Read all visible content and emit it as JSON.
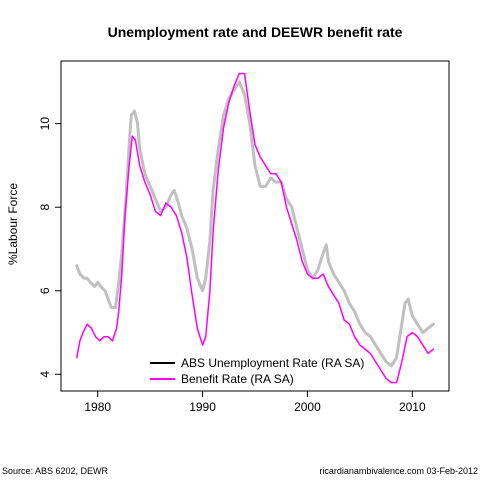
{
  "chart_data": {
    "type": "line",
    "title": "Unemployment rate and DEEWR benefit rate",
    "xlabel": "",
    "ylabel": "%Labour Force",
    "xlim": [
      1976.5,
      2013.5
    ],
    "ylim": [
      3.6,
      11.5
    ],
    "x_ticks": [
      1980,
      1990,
      2000,
      2010
    ],
    "y_ticks": [
      4,
      6,
      8,
      10
    ],
    "x_tick_labels": [
      "1980",
      "1990",
      "2000",
      "2010"
    ],
    "y_tick_labels": [
      "4",
      "6",
      "8",
      "10"
    ],
    "grid": false,
    "legend_position": "bottom-center",
    "series": [
      {
        "name": "ABS Unemployment Rate (RA SA)",
        "legend_color": "#000000",
        "color": "#c0c0c0",
        "points": [
          [
            1978.0,
            6.6
          ],
          [
            1978.3,
            6.4
          ],
          [
            1978.7,
            6.3
          ],
          [
            1979.0,
            6.3
          ],
          [
            1979.3,
            6.2
          ],
          [
            1979.7,
            6.1
          ],
          [
            1980.0,
            6.2
          ],
          [
            1980.3,
            6.1
          ],
          [
            1980.7,
            6.0
          ],
          [
            1981.0,
            5.8
          ],
          [
            1981.3,
            5.6
          ],
          [
            1981.7,
            5.6
          ],
          [
            1982.0,
            6.2
          ],
          [
            1982.3,
            6.9
          ],
          [
            1982.7,
            8.2
          ],
          [
            1983.0,
            9.5
          ],
          [
            1983.2,
            10.2
          ],
          [
            1983.5,
            10.3
          ],
          [
            1983.8,
            10.0
          ],
          [
            1984.0,
            9.4
          ],
          [
            1984.5,
            8.8
          ],
          [
            1985.0,
            8.5
          ],
          [
            1985.5,
            8.2
          ],
          [
            1986.0,
            7.9
          ],
          [
            1986.5,
            8.0
          ],
          [
            1987.0,
            8.3
          ],
          [
            1987.3,
            8.4
          ],
          [
            1987.7,
            8.1
          ],
          [
            1988.0,
            7.8
          ],
          [
            1988.5,
            7.5
          ],
          [
            1989.0,
            7.0
          ],
          [
            1989.5,
            6.3
          ],
          [
            1990.0,
            6.0
          ],
          [
            1990.3,
            6.3
          ],
          [
            1990.7,
            7.2
          ],
          [
            1991.0,
            8.4
          ],
          [
            1991.5,
            9.4
          ],
          [
            1992.0,
            10.2
          ],
          [
            1992.5,
            10.6
          ],
          [
            1993.0,
            10.8
          ],
          [
            1993.5,
            11.0
          ],
          [
            1994.0,
            10.7
          ],
          [
            1994.5,
            10.0
          ],
          [
            1995.0,
            9.0
          ],
          [
            1995.5,
            8.5
          ],
          [
            1996.0,
            8.5
          ],
          [
            1996.5,
            8.7
          ],
          [
            1997.0,
            8.6
          ],
          [
            1997.5,
            8.6
          ],
          [
            1998.0,
            8.2
          ],
          [
            1998.5,
            8.0
          ],
          [
            1999.0,
            7.5
          ],
          [
            1999.5,
            7.0
          ],
          [
            2000.0,
            6.5
          ],
          [
            2000.5,
            6.3
          ],
          [
            2001.0,
            6.5
          ],
          [
            2001.5,
            6.9
          ],
          [
            2001.8,
            7.1
          ],
          [
            2002.0,
            6.7
          ],
          [
            2002.5,
            6.4
          ],
          [
            2003.0,
            6.2
          ],
          [
            2003.5,
            6.0
          ],
          [
            2004.0,
            5.7
          ],
          [
            2004.5,
            5.5
          ],
          [
            2005.0,
            5.2
          ],
          [
            2005.5,
            5.0
          ],
          [
            2006.0,
            4.9
          ],
          [
            2006.5,
            4.7
          ],
          [
            2007.0,
            4.5
          ],
          [
            2007.5,
            4.3
          ],
          [
            2008.0,
            4.2
          ],
          [
            2008.5,
            4.4
          ],
          [
            2009.0,
            5.2
          ],
          [
            2009.3,
            5.7
          ],
          [
            2009.6,
            5.8
          ],
          [
            2010.0,
            5.4
          ],
          [
            2010.5,
            5.2
          ],
          [
            2011.0,
            5.0
          ],
          [
            2011.5,
            5.1
          ],
          [
            2012.0,
            5.2
          ]
        ]
      },
      {
        "name": "Benefit Rate (RA SA)",
        "legend_color": "#ff00ff",
        "color": "#ff00ff",
        "points": [
          [
            1978.0,
            4.4
          ],
          [
            1978.3,
            4.8
          ],
          [
            1978.6,
            5.0
          ],
          [
            1979.0,
            5.2
          ],
          [
            1979.4,
            5.1
          ],
          [
            1979.8,
            4.9
          ],
          [
            1980.2,
            4.8
          ],
          [
            1980.6,
            4.9
          ],
          [
            1981.0,
            4.9
          ],
          [
            1981.4,
            4.8
          ],
          [
            1981.8,
            5.1
          ],
          [
            1982.0,
            5.5
          ],
          [
            1982.3,
            6.4
          ],
          [
            1982.6,
            7.8
          ],
          [
            1983.0,
            9.0
          ],
          [
            1983.3,
            9.7
          ],
          [
            1983.6,
            9.6
          ],
          [
            1984.0,
            9.0
          ],
          [
            1984.5,
            8.6
          ],
          [
            1985.0,
            8.3
          ],
          [
            1985.5,
            7.9
          ],
          [
            1986.0,
            7.8
          ],
          [
            1986.5,
            8.1
          ],
          [
            1987.0,
            8.0
          ],
          [
            1987.5,
            7.8
          ],
          [
            1988.0,
            7.4
          ],
          [
            1988.5,
            6.8
          ],
          [
            1989.0,
            5.9
          ],
          [
            1989.5,
            5.1
          ],
          [
            1990.0,
            4.7
          ],
          [
            1990.3,
            4.9
          ],
          [
            1990.7,
            6.0
          ],
          [
            1991.0,
            7.4
          ],
          [
            1991.5,
            8.9
          ],
          [
            1992.0,
            9.9
          ],
          [
            1992.5,
            10.5
          ],
          [
            1993.0,
            10.9
          ],
          [
            1993.5,
            11.2
          ],
          [
            1994.0,
            11.2
          ],
          [
            1994.5,
            10.3
          ],
          [
            1995.0,
            9.5
          ],
          [
            1995.5,
            9.2
          ],
          [
            1996.0,
            9.0
          ],
          [
            1996.5,
            8.8
          ],
          [
            1997.0,
            8.8
          ],
          [
            1997.5,
            8.6
          ],
          [
            1998.0,
            8.0
          ],
          [
            1998.5,
            7.6
          ],
          [
            1999.0,
            7.2
          ],
          [
            1999.5,
            6.7
          ],
          [
            2000.0,
            6.4
          ],
          [
            2000.5,
            6.3
          ],
          [
            2001.0,
            6.3
          ],
          [
            2001.5,
            6.4
          ],
          [
            2002.0,
            6.1
          ],
          [
            2002.5,
            5.9
          ],
          [
            2003.0,
            5.7
          ],
          [
            2003.5,
            5.3
          ],
          [
            2004.0,
            5.2
          ],
          [
            2004.5,
            4.9
          ],
          [
            2005.0,
            4.7
          ],
          [
            2005.5,
            4.6
          ],
          [
            2006.0,
            4.5
          ],
          [
            2006.5,
            4.3
          ],
          [
            2007.0,
            4.1
          ],
          [
            2007.5,
            3.9
          ],
          [
            2008.0,
            3.8
          ],
          [
            2008.5,
            3.8
          ],
          [
            2009.0,
            4.3
          ],
          [
            2009.5,
            4.9
          ],
          [
            2010.0,
            5.0
          ],
          [
            2010.5,
            4.9
          ],
          [
            2011.0,
            4.7
          ],
          [
            2011.5,
            4.5
          ],
          [
            2012.0,
            4.6
          ]
        ]
      }
    ]
  },
  "footer": {
    "source": "Source: ABS 6202, DEWR",
    "credit": "ricardianambivalence.com    03-Feb-2012"
  }
}
